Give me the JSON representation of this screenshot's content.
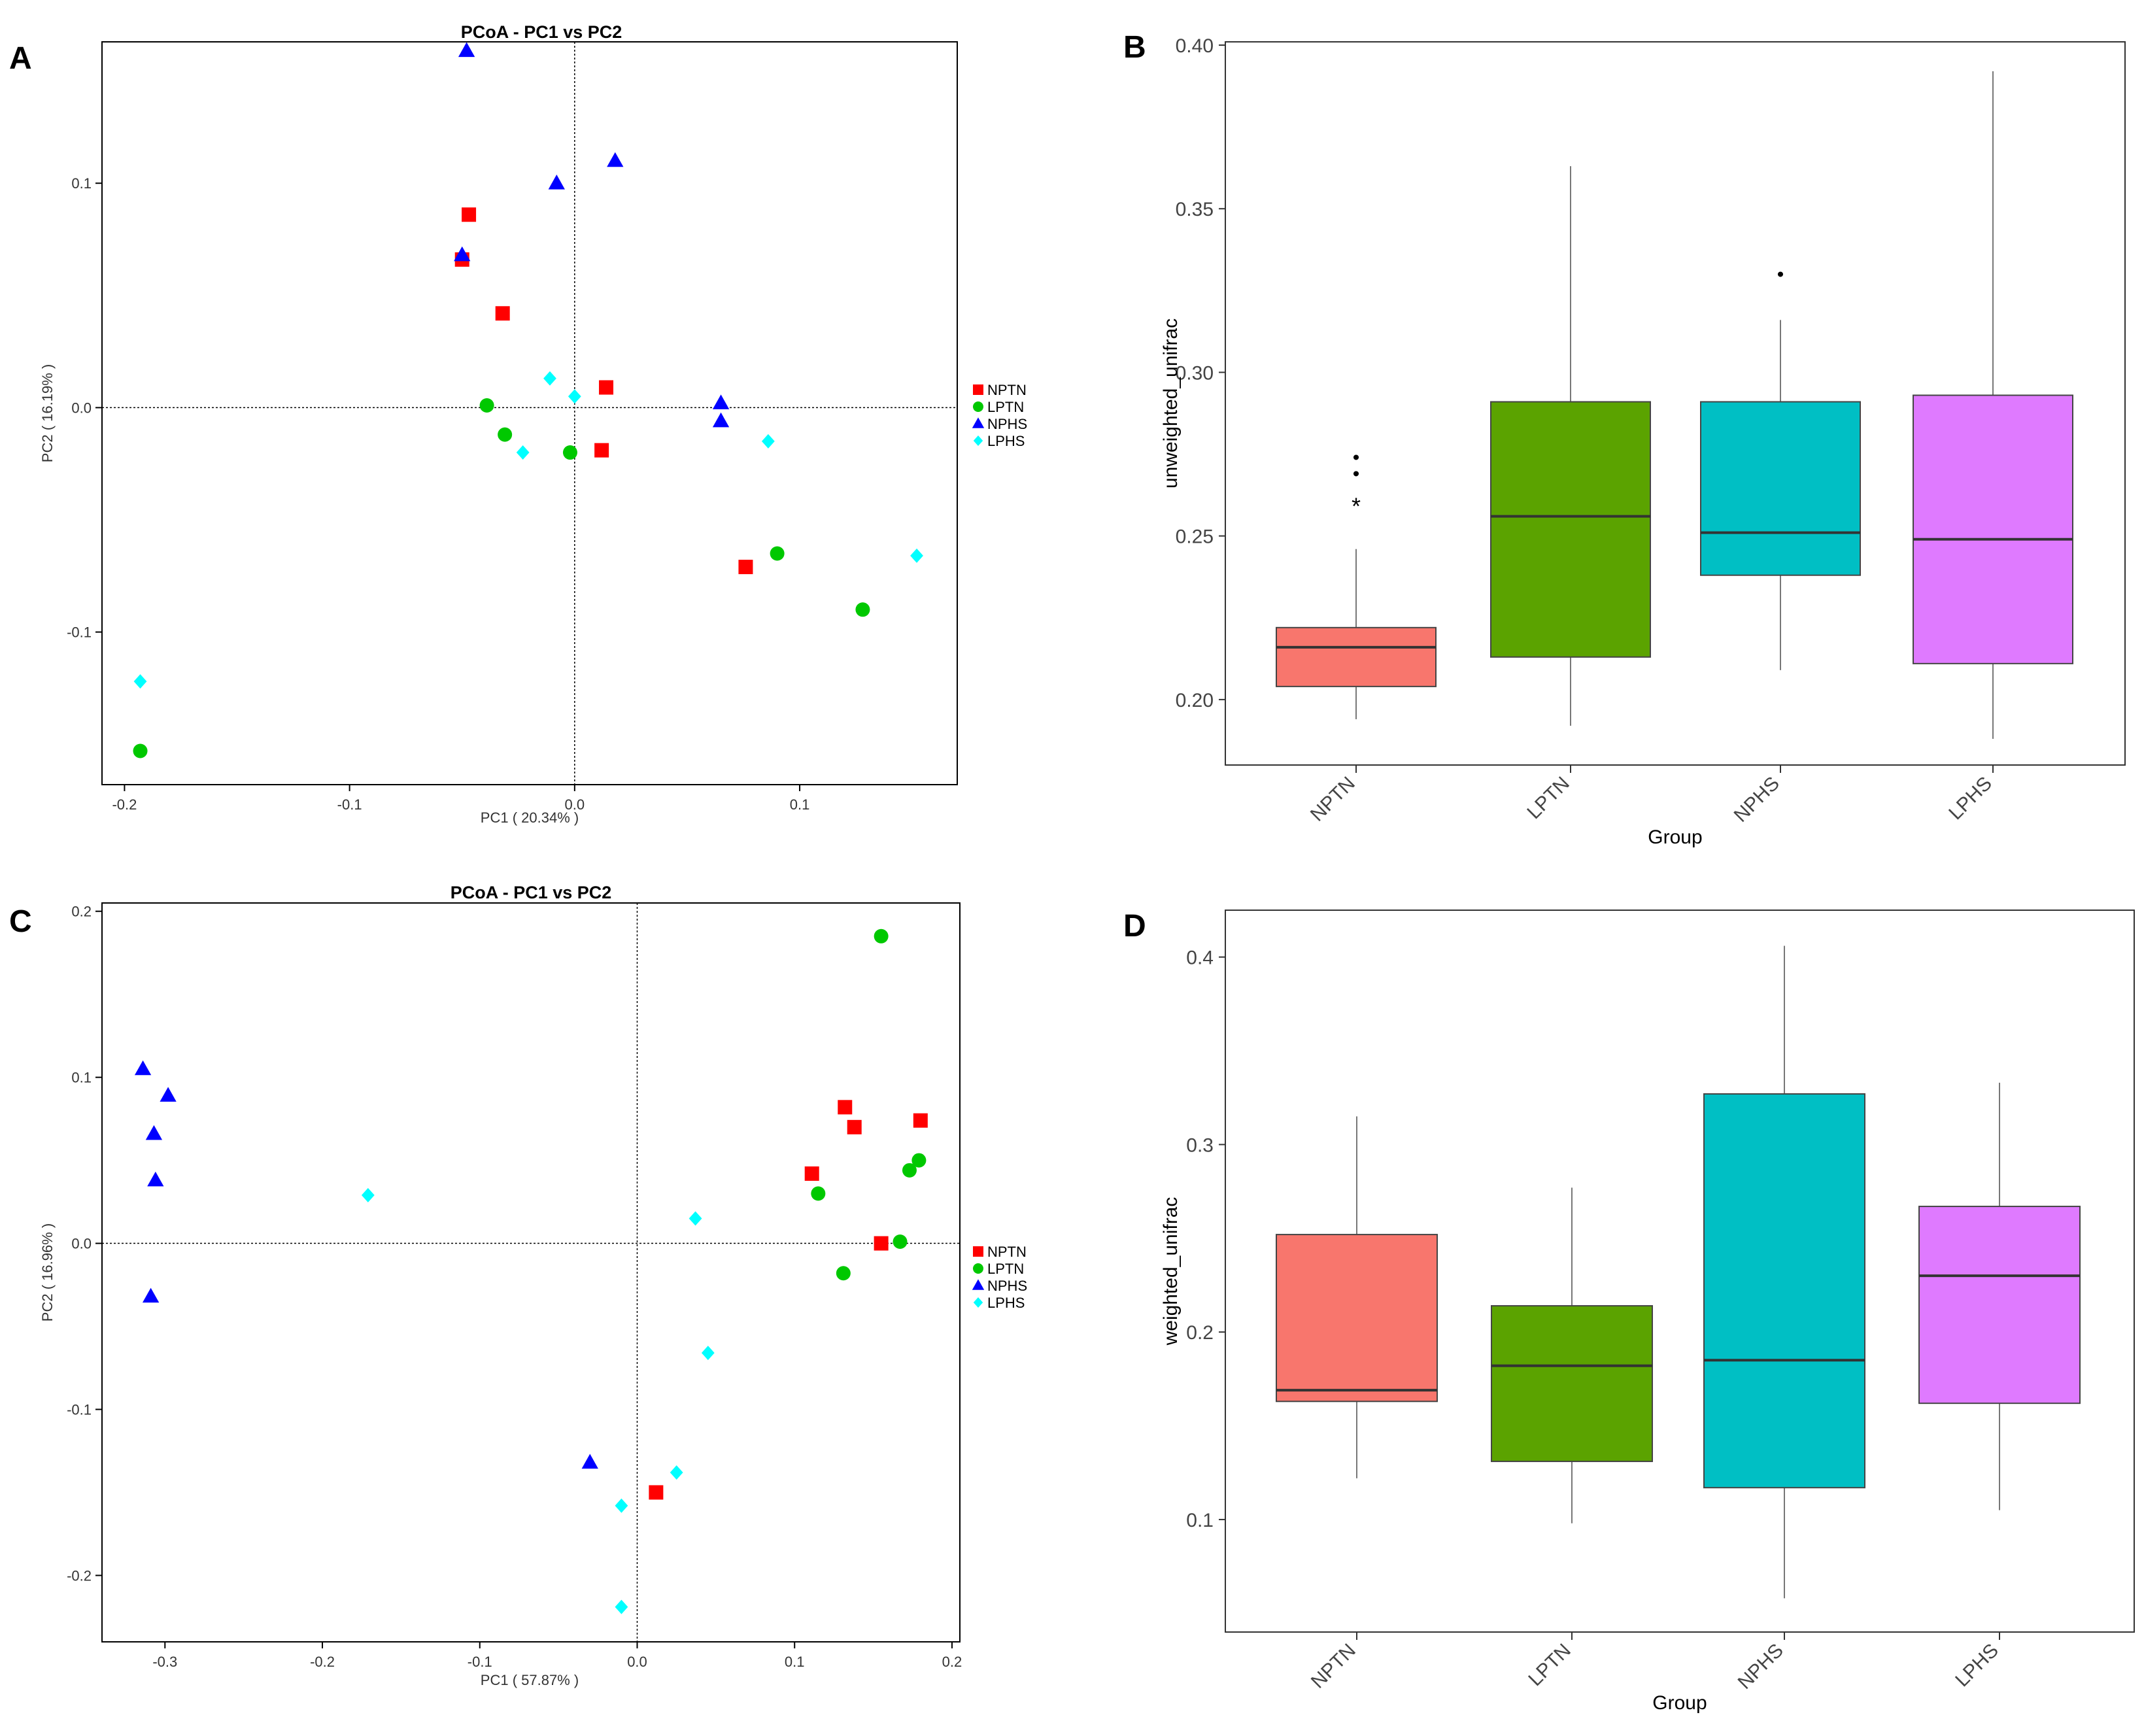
{
  "panels": {
    "A": {
      "letter": "A"
    },
    "B": {
      "letter": "B"
    },
    "C": {
      "letter": "C"
    },
    "D": {
      "letter": "D"
    }
  },
  "legend_items": [
    {
      "name": "NPTN",
      "color": "#ff0000",
      "shape": "square"
    },
    {
      "name": "LPTN",
      "color": "#00c800",
      "shape": "circle"
    },
    {
      "name": "NPHS",
      "color": "#0000ff",
      "shape": "triangle"
    },
    {
      "name": "LPHS",
      "color": "#00ffff",
      "shape": "diamond"
    }
  ],
  "chart_data": [
    {
      "panel": "A",
      "type": "scatter",
      "title": "PCoA - PC1 vs PC2",
      "xlabel": "PC1 ( 20.34% )",
      "ylabel": "PC2 ( 16.19% )",
      "xlim": [
        -0.21,
        0.17
      ],
      "ylim": [
        -0.168,
        0.163
      ],
      "xticks": [
        -0.2,
        -0.1,
        0.0,
        0.1
      ],
      "xtick_labels": [
        "-0.2",
        "-0.1",
        "0.0",
        "0.1"
      ],
      "yticks": [
        -0.1,
        0.0,
        0.1
      ],
      "ytick_labels": [
        "-0.1",
        "0.0",
        "0.1"
      ],
      "legend": "right",
      "reference_lines": [
        0,
        0
      ],
      "series": [
        {
          "name": "NPTN",
          "points": [
            [
              -0.05,
              0.066
            ],
            [
              -0.047,
              0.086
            ],
            [
              -0.032,
              0.042
            ],
            [
              0.014,
              0.009
            ],
            [
              0.012,
              -0.019
            ],
            [
              0.076,
              -0.071
            ]
          ]
        },
        {
          "name": "LPTN",
          "points": [
            [
              -0.039,
              0.001
            ],
            [
              -0.031,
              -0.012
            ],
            [
              -0.002,
              -0.02
            ],
            [
              0.09,
              -0.065
            ],
            [
              0.128,
              -0.09
            ],
            [
              -0.193,
              -0.153
            ]
          ]
        },
        {
          "name": "NPHS",
          "points": [
            [
              -0.048,
              0.159
            ],
            [
              -0.05,
              0.068
            ],
            [
              -0.008,
              0.1
            ],
            [
              0.018,
              0.11
            ],
            [
              0.065,
              0.002
            ],
            [
              0.065,
              -0.006
            ]
          ]
        },
        {
          "name": "LPHS",
          "points": [
            [
              -0.011,
              0.013
            ],
            [
              0.0,
              0.005
            ],
            [
              -0.023,
              -0.02
            ],
            [
              0.086,
              -0.015
            ],
            [
              0.152,
              -0.066
            ],
            [
              -0.193,
              -0.122
            ]
          ]
        }
      ]
    },
    {
      "panel": "B",
      "type": "box",
      "title": "",
      "xlabel": "Group",
      "ylabel": "unweighted_unifrac",
      "ylim": [
        0.18,
        0.401
      ],
      "yticks": [
        0.2,
        0.25,
        0.3,
        0.35,
        0.4
      ],
      "ytick_labels": [
        "0.20",
        "0.25",
        "0.30",
        "0.35",
        "0.40"
      ],
      "categories": [
        "NPTN",
        "LPTN",
        "NPHS",
        "LPHS"
      ],
      "colors": [
        "#f8766d",
        "#5ba300",
        "#00bfc4",
        "#df7aff"
      ],
      "boxes": [
        {
          "min": 0.194,
          "q1": 0.204,
          "median": 0.216,
          "q3": 0.222,
          "max": 0.246,
          "outliers": [
            0.274,
            0.269,
            0.261
          ]
        },
        {
          "min": 0.192,
          "q1": 0.213,
          "median": 0.256,
          "q3": 0.291,
          "max": 0.363,
          "outliers": []
        },
        {
          "min": 0.209,
          "q1": 0.238,
          "median": 0.251,
          "q3": 0.291,
          "max": 0.316,
          "outliers": [
            0.33
          ]
        },
        {
          "min": 0.188,
          "q1": 0.211,
          "median": 0.249,
          "q3": 0.293,
          "max": 0.392,
          "outliers": []
        }
      ],
      "outlier_markers": [
        "•",
        "•",
        "*"
      ]
    },
    {
      "panel": "C",
      "type": "scatter",
      "title": "PCoA - PC1 vs PC2",
      "xlabel": "PC1 ( 57.87% )",
      "ylabel": "PC2 ( 16.96% )",
      "xlim": [
        -0.34,
        0.205
      ],
      "ylim": [
        -0.24,
        0.205
      ],
      "xticks": [
        -0.3,
        -0.2,
        -0.1,
        0.0,
        0.1,
        0.2
      ],
      "xtick_labels": [
        "-0.3",
        "-0.2",
        "-0.1",
        "0.0",
        "0.1",
        "0.2"
      ],
      "yticks": [
        -0.2,
        -0.1,
        0.0,
        0.1,
        0.2
      ],
      "ytick_labels": [
        "-0.2",
        "-0.1",
        "0.0",
        "0.1",
        "0.2"
      ],
      "legend": "right",
      "reference_lines": [
        0,
        0
      ],
      "series": [
        {
          "name": "NPTN",
          "points": [
            [
              0.132,
              0.082
            ],
            [
              0.138,
              0.07
            ],
            [
              0.18,
              0.074
            ],
            [
              0.111,
              0.042
            ],
            [
              0.155,
              0.0
            ],
            [
              0.012,
              -0.15
            ]
          ]
        },
        {
          "name": "LPTN",
          "points": [
            [
              0.155,
              0.185
            ],
            [
              0.179,
              0.05
            ],
            [
              0.173,
              0.044
            ],
            [
              0.115,
              0.03
            ],
            [
              0.167,
              0.001
            ],
            [
              0.131,
              -0.018
            ]
          ]
        },
        {
          "name": "NPHS",
          "points": [
            [
              -0.314,
              0.105
            ],
            [
              -0.298,
              0.089
            ],
            [
              -0.307,
              0.066
            ],
            [
              -0.306,
              0.038
            ],
            [
              -0.309,
              -0.032
            ],
            [
              -0.03,
              -0.132
            ]
          ]
        },
        {
          "name": "LPHS",
          "points": [
            [
              -0.171,
              0.029
            ],
            [
              0.037,
              0.015
            ],
            [
              0.045,
              -0.066
            ],
            [
              0.025,
              -0.138
            ],
            [
              -0.01,
              -0.158
            ],
            [
              -0.01,
              -0.219
            ]
          ]
        }
      ]
    },
    {
      "panel": "D",
      "type": "box",
      "title": "",
      "xlabel": "Group",
      "ylabel": "weighted_unifrac",
      "ylim": [
        0.04,
        0.425
      ],
      "yticks": [
        0.1,
        0.2,
        0.3,
        0.4
      ],
      "ytick_labels": [
        "0.1",
        "0.2",
        "0.3",
        "0.4"
      ],
      "categories": [
        "NPTN",
        "LPTN",
        "NPHS",
        "LPHS"
      ],
      "colors": [
        "#f8766d",
        "#5ba300",
        "#00bfc4",
        "#df7aff"
      ],
      "boxes": [
        {
          "min": 0.122,
          "q1": 0.163,
          "median": 0.169,
          "q3": 0.252,
          "max": 0.315,
          "outliers": []
        },
        {
          "min": 0.098,
          "q1": 0.131,
          "median": 0.182,
          "q3": 0.214,
          "max": 0.277,
          "outliers": []
        },
        {
          "min": 0.058,
          "q1": 0.117,
          "median": 0.185,
          "q3": 0.327,
          "max": 0.406,
          "outliers": []
        },
        {
          "min": 0.105,
          "q1": 0.162,
          "median": 0.23,
          "q3": 0.267,
          "max": 0.333,
          "outliers": []
        }
      ],
      "outlier_markers": []
    }
  ]
}
